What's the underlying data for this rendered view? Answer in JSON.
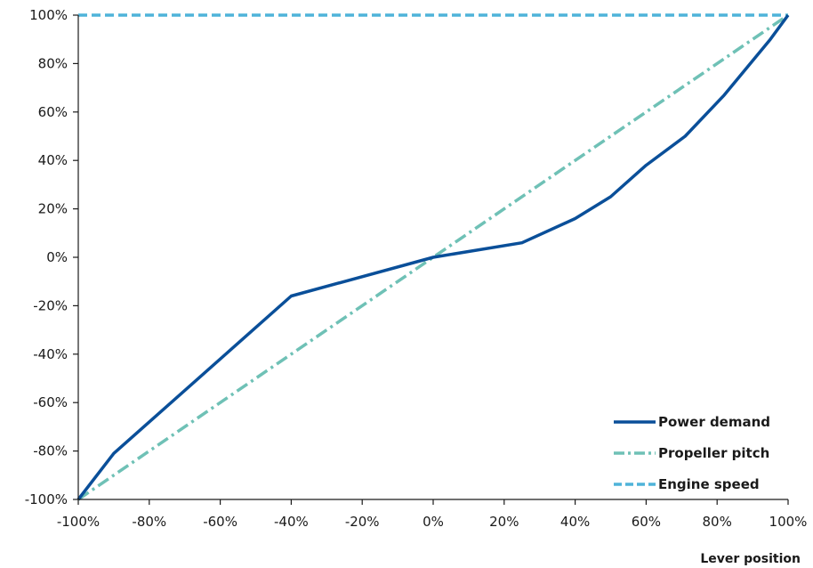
{
  "chart_data": {
    "type": "line",
    "xlabel": "Lever position",
    "ylabel": "",
    "xlim": [
      -100,
      100
    ],
    "ylim": [
      -100,
      100
    ],
    "x_ticks": [
      "-100%",
      "-80%",
      "-60%",
      "-40%",
      "-20%",
      "0%",
      "20%",
      "40%",
      "60%",
      "80%",
      "100%"
    ],
    "y_ticks": [
      "100%",
      "80%",
      "60%",
      "40%",
      "20%",
      "0%",
      "-20%",
      "-40%",
      "-60%",
      "-80%",
      "-100%"
    ],
    "grid": false,
    "legend_position": "bottom-right",
    "series": [
      {
        "name": "Power demand",
        "color": "#0a4f99",
        "style": "solid",
        "x": [
          -100,
          -90,
          -40,
          0,
          25,
          40,
          50,
          60,
          71,
          82,
          95,
          100
        ],
        "y": [
          -100,
          -81,
          -16,
          0,
          6,
          16,
          25,
          38,
          50,
          67,
          90,
          100
        ]
      },
      {
        "name": "Propeller pitch",
        "color": "#6fc1b6",
        "style": "dashdot",
        "x": [
          -100,
          100
        ],
        "y": [
          -100,
          100
        ]
      },
      {
        "name": "Engine speed",
        "color": "#4fb3d9",
        "style": "dashed",
        "x": [
          -100,
          100
        ],
        "y": [
          100,
          100
        ]
      }
    ]
  }
}
